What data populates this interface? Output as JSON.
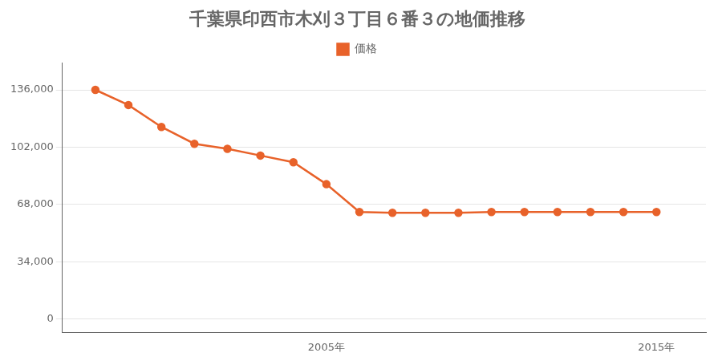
{
  "chart_data": {
    "type": "line",
    "title": "千葉県印西市木刈３丁目６番３の地価推移",
    "x": [
      1998,
      1999,
      2000,
      2001,
      2002,
      2003,
      2004,
      2005,
      2006,
      2007,
      2008,
      2009,
      2010,
      2011,
      2012,
      2013,
      2014,
      2015
    ],
    "series": [
      {
        "name": "価格",
        "color": "#E8622A",
        "values": [
          136000,
          127000,
          114000,
          104000,
          101000,
          97000,
          93000,
          80000,
          63500,
          63000,
          63000,
          63000,
          63500,
          63500,
          63500,
          63500,
          63500,
          63500
        ]
      }
    ],
    "xlim": [
      1997,
      2016.5
    ],
    "xticks": [
      {
        "value": 2005,
        "label": "2005年"
      },
      {
        "value": 2015,
        "label": "2015年"
      }
    ],
    "ylim": [
      -8000,
      152000
    ],
    "yticks": [
      0,
      {
        "value": 34000,
        "label": "34,000"
      },
      {
        "value": 68000,
        "label": "68,000"
      },
      {
        "value": 102000,
        "label": "102,000"
      },
      {
        "value": 136000,
        "label": "136,000"
      }
    ],
    "grid": "y",
    "legend": "top",
    "marker": "circle"
  }
}
